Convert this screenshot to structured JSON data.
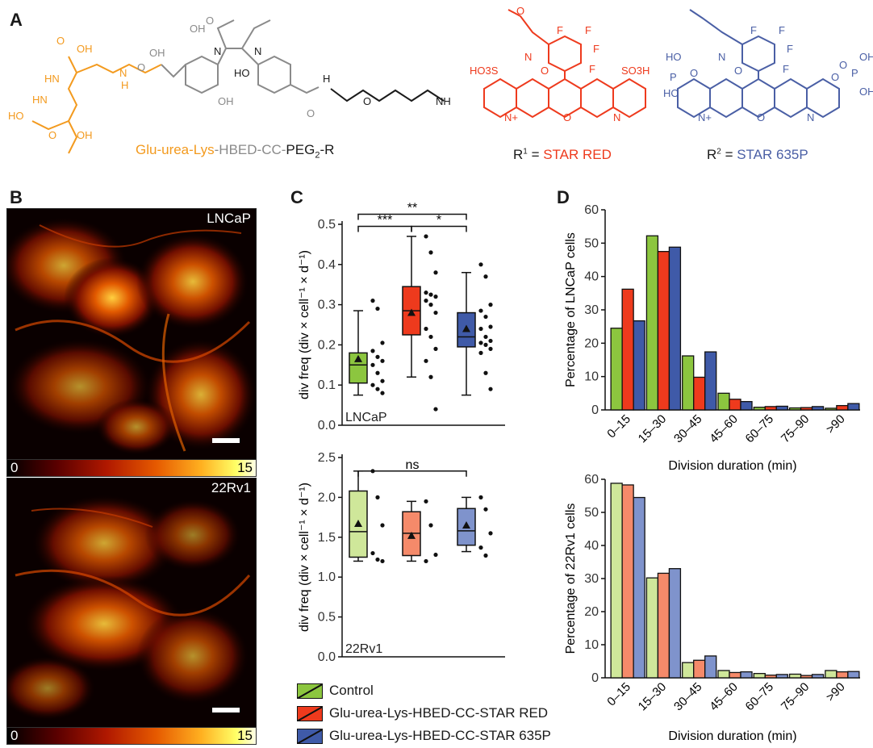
{
  "panels": {
    "a": "A",
    "b": "B",
    "c": "C",
    "d": "D"
  },
  "panel_a": {
    "conjugate_orange": "Glu-urea-Lys",
    "conjugate_gray": "-HBED-CC-",
    "conjugate_peg": "PEG",
    "conjugate_peg_sub": "2",
    "conjugate_r": "-R",
    "r1_prefix": "R",
    "r1_sup": "1",
    "r1_eq": " = ",
    "r1_name": "STAR RED",
    "r2_prefix": "R",
    "r2_sup": "2",
    "r2_eq": " = ",
    "r2_name": "STAR 635P",
    "atom_labels": [
      "OH",
      "O",
      "HN",
      "HN",
      "HO",
      "O",
      "OH",
      "H",
      "N",
      "O",
      "OH",
      "N",
      "OH",
      "O",
      "HO",
      "OH",
      "N",
      "H",
      "O",
      "O",
      "NH",
      "O",
      "F",
      "F",
      "F",
      "F",
      "N",
      "O",
      "HO3S",
      "SO3H",
      "N+",
      "O",
      "N",
      "F",
      "F",
      "F",
      "F",
      "N",
      "O",
      "HO",
      "P",
      "O",
      "HO",
      "O",
      "O",
      "P",
      "OH",
      "OH",
      "N+",
      "O",
      "N"
    ]
  },
  "panel_b": {
    "top_label": "LNCaP",
    "bottom_label": "22Rv1",
    "colorbar_min": "0",
    "colorbar_max": "15"
  },
  "legend": [
    {
      "label": "Control",
      "color": "#8cc63f"
    },
    {
      "label": "Glu-urea-Lys-HBED-CC-STAR RED",
      "color": "#ee3a1d"
    },
    {
      "label": "Glu-urea-Lys-HBED-CC-STAR 635P",
      "color": "#3f5aa8"
    }
  ],
  "chart_data": [
    {
      "type": "box",
      "panel": "C",
      "cell_line": "LNCaP",
      "ylabel": "div freq (div × cell⁻¹ × d⁻¹)",
      "ylim": [
        0.0,
        0.5
      ],
      "yticks": [
        "0.0",
        "0.1",
        "0.2",
        "0.3",
        "0.4",
        "0.5"
      ],
      "series": [
        {
          "name": "Control",
          "color": "#8cc63f",
          "min": 0.075,
          "q1": 0.105,
          "median": 0.15,
          "q3": 0.18,
          "max": 0.285,
          "mean": 0.165,
          "points": [
            0.31,
            0.29,
            0.205,
            0.185,
            0.17,
            0.16,
            0.15,
            0.13,
            0.11,
            0.1,
            0.09,
            0.08
          ]
        },
        {
          "name": "Glu-urea-Lys-HBED-CC-STAR RED",
          "color": "#ee3a1d",
          "min": 0.12,
          "q1": 0.225,
          "median": 0.285,
          "q3": 0.345,
          "max": 0.47,
          "mean": 0.28,
          "points": [
            0.47,
            0.43,
            0.38,
            0.33,
            0.325,
            0.32,
            0.31,
            0.3,
            0.28,
            0.24,
            0.22,
            0.19,
            0.16,
            0.12,
            0.04
          ]
        },
        {
          "name": "Glu-urea-Lys-HBED-CC-STAR 635P",
          "color": "#3f5aa8",
          "min": 0.075,
          "q1": 0.195,
          "median": 0.22,
          "q3": 0.28,
          "max": 0.38,
          "mean": 0.24,
          "points": [
            0.4,
            0.37,
            0.3,
            0.285,
            0.27,
            0.245,
            0.24,
            0.22,
            0.21,
            0.205,
            0.2,
            0.19,
            0.18,
            0.13,
            0.09
          ]
        }
      ],
      "annotations": [
        {
          "text": "**",
          "from": 0,
          "to": 2,
          "level": 0.525
        },
        {
          "text": "***",
          "from": 0,
          "to": 1,
          "level": 0.495
        },
        {
          "text": "*",
          "from": 1,
          "to": 2,
          "level": 0.495
        }
      ]
    },
    {
      "type": "box",
      "panel": "C",
      "cell_line": "22Rv1",
      "ylabel": "div freq (div × cell⁻¹ × d⁻¹)",
      "ylim": [
        0.0,
        2.5
      ],
      "yticks": [
        "0.0",
        "0.5",
        "1.0",
        "1.5",
        "2.0",
        "2.5"
      ],
      "series": [
        {
          "name": "Control",
          "color": "#cfe79a",
          "min": 1.2,
          "q1": 1.25,
          "median": 1.57,
          "q3": 2.08,
          "max": 2.33,
          "mean": 1.67,
          "points": [
            2.33,
            2.0,
            1.65,
            1.3,
            1.22,
            1.2
          ]
        },
        {
          "name": "Glu-urea-Lys-HBED-CC-STAR RED",
          "color": "#f58a6a",
          "min": 1.2,
          "q1": 1.27,
          "median": 1.55,
          "q3": 1.82,
          "max": 1.95,
          "mean": 1.52,
          "points": [
            1.95,
            1.65,
            1.28,
            1.2
          ]
        },
        {
          "name": "Glu-urea-Lys-HBED-CC-STAR 635P",
          "color": "#7f93cc",
          "min": 1.32,
          "q1": 1.4,
          "median": 1.58,
          "q3": 1.86,
          "max": 2.0,
          "mean": 1.65,
          "points": [
            2.0,
            1.85,
            1.55,
            1.37,
            1.27
          ]
        }
      ],
      "annotations": [
        {
          "text": "ns",
          "from": 0,
          "to": 2,
          "level": 2.33
        }
      ]
    },
    {
      "type": "bar",
      "panel": "D",
      "categories": [
        "0–15",
        "15–30",
        "30–45",
        "45–60",
        "60–75",
        "75–90",
        ">90"
      ],
      "xlabel": "Division duration (min)",
      "ylabel": "Percentage of LNCaP cells",
      "ylim": [
        0,
        60
      ],
      "yticks": [
        "0",
        "10",
        "20",
        "30",
        "40",
        "50",
        "60"
      ],
      "series": [
        {
          "name": "Control",
          "color": "#8cc63f",
          "values": [
            24.5,
            52.2,
            16.2,
            5.0,
            0.8,
            0.6,
            0.5
          ]
        },
        {
          "name": "Glu-urea-Lys-HBED-CC-STAR RED",
          "color": "#ee3a1d",
          "values": [
            36.2,
            47.5,
            9.8,
            3.2,
            1.0,
            0.7,
            1.3
          ]
        },
        {
          "name": "Glu-urea-Lys-HBED-CC-STAR 635P",
          "color": "#3f5aa8",
          "values": [
            26.7,
            48.8,
            17.4,
            2.5,
            1.1,
            1.0,
            1.9
          ]
        }
      ]
    },
    {
      "type": "bar",
      "panel": "D",
      "categories": [
        "0–15",
        "15–30",
        "30–45",
        "45–60",
        "60–75",
        "75–90",
        ">90"
      ],
      "xlabel": "Division duration (min)",
      "ylabel": "Percentage of 22Rv1 cells",
      "ylim": [
        0,
        60
      ],
      "yticks": [
        "0",
        "10",
        "20",
        "30",
        "40",
        "50",
        "60"
      ],
      "series": [
        {
          "name": "Control",
          "color": "#cfe79a",
          "values": [
            58.8,
            30.2,
            4.6,
            2.2,
            1.3,
            1.1,
            2.2
          ]
        },
        {
          "name": "Glu-urea-Lys-HBED-CC-STAR RED",
          "color": "#f58a6a",
          "values": [
            58.3,
            31.6,
            5.3,
            1.6,
            0.8,
            0.7,
            1.8
          ]
        },
        {
          "name": "Glu-urea-Lys-HBED-CC-STAR 635P",
          "color": "#7f93cc",
          "values": [
            54.5,
            33.0,
            6.6,
            1.8,
            1.0,
            1.0,
            1.9
          ]
        }
      ]
    }
  ]
}
